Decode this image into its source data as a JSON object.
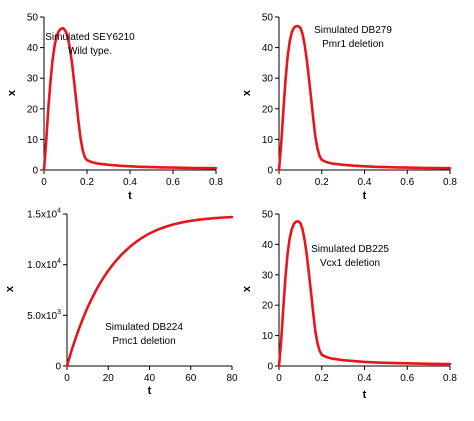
{
  "colors": {
    "curve": "#e8161b",
    "axis": "#000000"
  },
  "chart_data": [
    {
      "type": "line",
      "xlabel": "t",
      "ylabel": "x",
      "xlim": [
        0,
        0.8
      ],
      "ylim": [
        0,
        50
      ],
      "xticks": [
        0,
        0.2,
        0.4,
        0.6,
        0.8
      ],
      "xtick_labels": [
        "0",
        "0.2",
        "0.4",
        "0.6",
        "0.8"
      ],
      "yticks": [
        0,
        10,
        20,
        30,
        40,
        50
      ],
      "ytick_labels": [
        "0",
        "10",
        "20",
        "30",
        "40",
        "50"
      ],
      "annotation": [
        "Simulated SEY6210",
        "Wild type."
      ],
      "series": [
        {
          "x": [
            0,
            0.01,
            0.02,
            0.03,
            0.04,
            0.05,
            0.06,
            0.07,
            0.08,
            0.09,
            0.1,
            0.11,
            0.12,
            0.13,
            0.14,
            0.15,
            0.16,
            0.17,
            0.18,
            0.19,
            0.2,
            0.22,
            0.25,
            0.3,
            0.35,
            0.4,
            0.45,
            0.5,
            0.55,
            0.6,
            0.65,
            0.7,
            0.75,
            0.8
          ],
          "values": [
            0,
            9,
            20,
            29,
            36,
            41,
            44,
            45.5,
            46.2,
            46.3,
            45.5,
            43.5,
            40,
            35,
            29,
            22.5,
            16,
            10.5,
            6.5,
            4.2,
            3.2,
            2.6,
            2.1,
            1.7,
            1.4,
            1.2,
            1.05,
            0.95,
            0.85,
            0.8,
            0.72,
            0.66,
            0.62,
            0.6
          ]
        }
      ]
    },
    {
      "type": "line",
      "xlabel": "t",
      "ylabel": "x",
      "xlim": [
        0,
        0.8
      ],
      "ylim": [
        0,
        50
      ],
      "xticks": [
        0,
        0.2,
        0.4,
        0.6,
        0.8
      ],
      "xtick_labels": [
        "0",
        "0.2",
        "0.4",
        "0.6",
        "0.8"
      ],
      "yticks": [
        0,
        10,
        20,
        30,
        40,
        50
      ],
      "ytick_labels": [
        "0",
        "10",
        "20",
        "30",
        "40",
        "50"
      ],
      "annotation": [
        "Simulated DB279",
        "Pmr1 deletion"
      ],
      "series": [
        {
          "x": [
            0,
            0.01,
            0.02,
            0.03,
            0.04,
            0.05,
            0.06,
            0.07,
            0.08,
            0.09,
            0.1,
            0.11,
            0.12,
            0.13,
            0.14,
            0.15,
            0.16,
            0.17,
            0.18,
            0.19,
            0.2,
            0.22,
            0.25,
            0.3,
            0.35,
            0.4,
            0.45,
            0.5,
            0.55,
            0.6,
            0.65,
            0.7,
            0.75,
            0.8
          ],
          "values": [
            0,
            8,
            19,
            29,
            37,
            42,
            45,
            46.5,
            47,
            47,
            46.5,
            44.5,
            41,
            36,
            30,
            23.5,
            17,
            11,
            7,
            4.5,
            3.3,
            2.6,
            2.1,
            1.7,
            1.4,
            1.2,
            1.05,
            0.95,
            0.85,
            0.8,
            0.72,
            0.66,
            0.62,
            0.6
          ]
        }
      ]
    },
    {
      "type": "line",
      "xlabel": "t",
      "ylabel": "x",
      "xlim": [
        0,
        80
      ],
      "ylim": [
        0,
        15000
      ],
      "xticks": [
        0,
        20,
        40,
        60,
        80
      ],
      "xtick_labels": [
        "0",
        "20",
        "40",
        "60",
        "80"
      ],
      "yticks": [
        0,
        5000,
        10000,
        15000
      ],
      "ytick_labels": [
        {
          "mantissa": "0",
          "exp": ""
        },
        {
          "mantissa": "5.0x10",
          "exp": "3"
        },
        {
          "mantissa": "1.0x10",
          "exp": "4"
        },
        {
          "mantissa": "1.5x10",
          "exp": "4"
        }
      ],
      "annotation": [
        "Simulated DB224",
        "Pmc1 deletion"
      ],
      "series": [
        {
          "x": [
            0,
            2,
            4,
            6,
            8,
            10,
            12,
            14,
            16,
            18,
            20,
            22,
            24,
            26,
            28,
            30,
            32,
            34,
            36,
            38,
            40,
            44,
            48,
            52,
            56,
            60,
            64,
            68,
            72,
            76,
            80
          ],
          "values": [
            0,
            1380,
            2640,
            3780,
            4830,
            5780,
            6650,
            7440,
            8160,
            8810,
            9410,
            9950,
            10440,
            10890,
            11300,
            11670,
            12010,
            12320,
            12600,
            12850,
            13080,
            13460,
            13760,
            14000,
            14180,
            14330,
            14440,
            14530,
            14600,
            14650,
            14690
          ]
        }
      ]
    },
    {
      "type": "line",
      "xlabel": "t",
      "ylabel": "x",
      "xlim": [
        0,
        0.8
      ],
      "ylim": [
        0,
        50
      ],
      "xticks": [
        0,
        0.2,
        0.4,
        0.6,
        0.8
      ],
      "xtick_labels": [
        "0",
        "0.2",
        "0.4",
        "0.6",
        "0.8"
      ],
      "yticks": [
        0,
        10,
        20,
        30,
        40,
        50
      ],
      "ytick_labels": [
        "0",
        "10",
        "20",
        "30",
        "40",
        "50"
      ],
      "annotation": [
        "Simulated DB225",
        "Vcx1 deletion"
      ],
      "series": [
        {
          "x": [
            0,
            0.01,
            0.02,
            0.03,
            0.04,
            0.05,
            0.06,
            0.07,
            0.08,
            0.09,
            0.1,
            0.11,
            0.12,
            0.13,
            0.14,
            0.15,
            0.16,
            0.17,
            0.18,
            0.19,
            0.2,
            0.22,
            0.25,
            0.3,
            0.35,
            0.4,
            0.45,
            0.5,
            0.55,
            0.6,
            0.65,
            0.7,
            0.75,
            0.8
          ],
          "values": [
            0,
            8,
            19,
            29,
            37,
            42,
            45,
            46.8,
            47.5,
            47.6,
            47,
            45,
            41.5,
            36.5,
            30.5,
            24,
            17.5,
            11.5,
            7.5,
            5,
            3.7,
            3,
            2.4,
            1.9,
            1.6,
            1.35,
            1.2,
            1.05,
            0.95,
            0.88,
            0.8,
            0.74,
            0.7,
            0.65
          ]
        }
      ]
    }
  ]
}
